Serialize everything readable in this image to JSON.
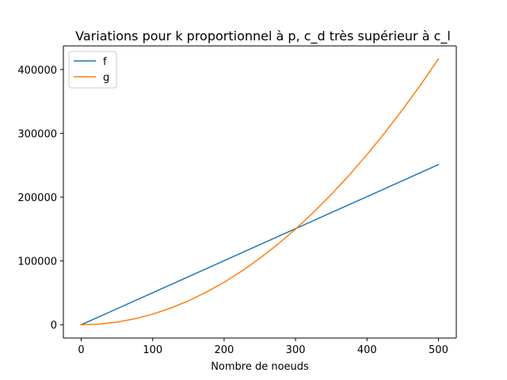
{
  "chart_data": {
    "type": "line",
    "title": "Variations pour k proportionnel à p, c_d très supérieur à c_l",
    "xlabel": "Nombre de noeuds",
    "ylabel": "",
    "xlim": [
      -25,
      525
    ],
    "ylim": [
      -20800,
      437000
    ],
    "x_ticks": [
      0,
      100,
      200,
      300,
      400,
      500
    ],
    "y_ticks": [
      0,
      100000,
      200000,
      300000,
      400000
    ],
    "legend_position": "top-left",
    "grid": false,
    "series": [
      {
        "name": "f",
        "color": "#1f77b4",
        "x": [
          0,
          50,
          100,
          150,
          200,
          250,
          300,
          350,
          400,
          450,
          500
        ],
        "values": [
          0,
          25100,
          50200,
          75300,
          100400,
          125500,
          150600,
          175700,
          200800,
          225900,
          251000
        ]
      },
      {
        "name": "g",
        "color": "#ff7f0e",
        "x": [
          0,
          25,
          50,
          75,
          100,
          125,
          150,
          175,
          200,
          225,
          250,
          275,
          300,
          325,
          350,
          375,
          400,
          425,
          450,
          475,
          500
        ],
        "values": [
          0,
          1040,
          4170,
          9380,
          16670,
          26040,
          37500,
          51040,
          66670,
          84380,
          104170,
          126040,
          150000,
          176040,
          204170,
          234380,
          266670,
          301040,
          337500,
          376040,
          416670
        ]
      }
    ]
  }
}
